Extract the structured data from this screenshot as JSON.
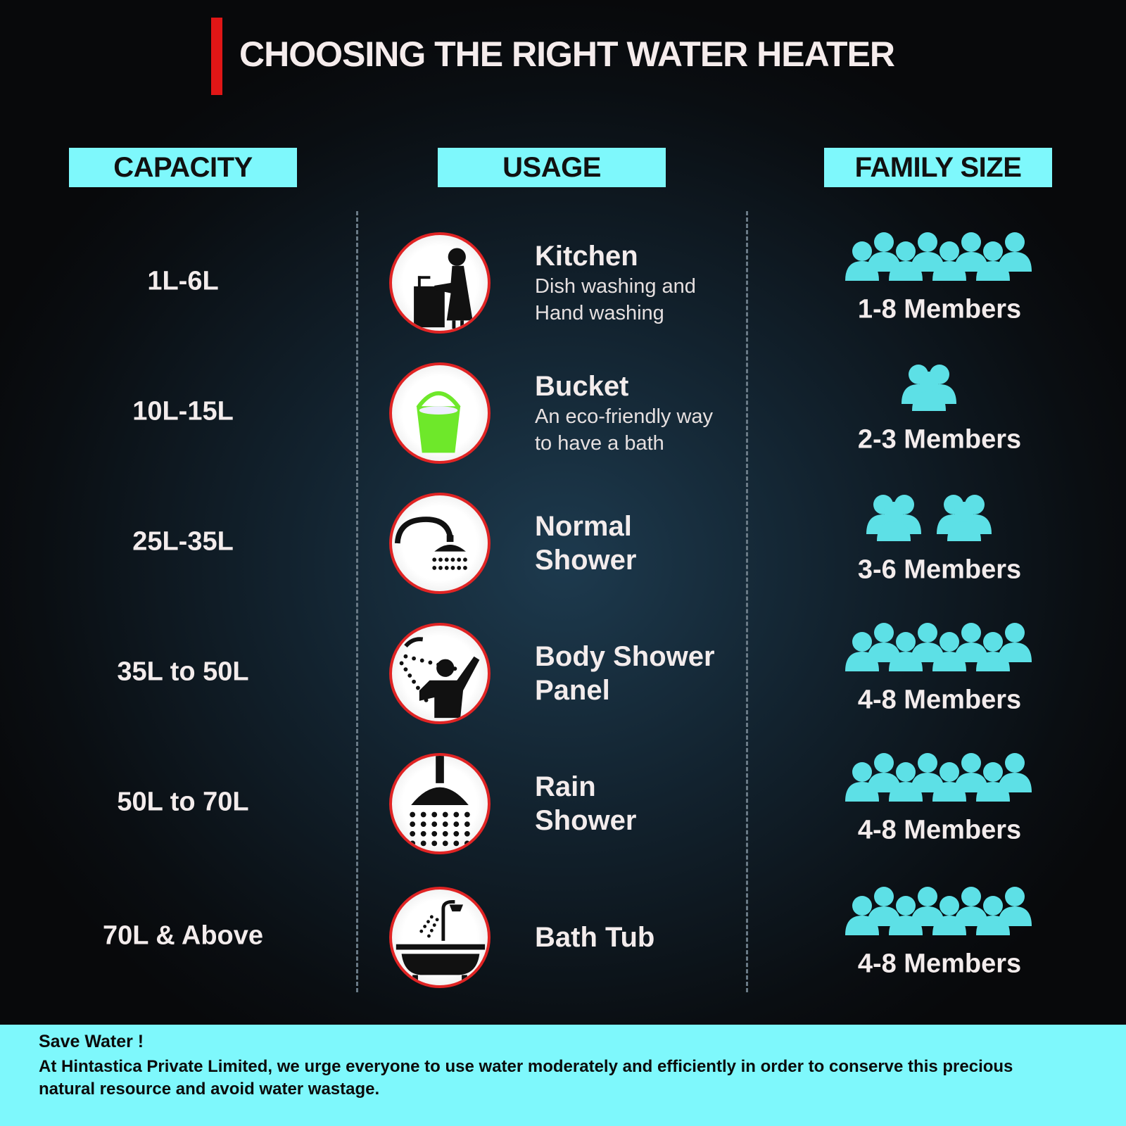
{
  "title": "CHOOSING THE RIGHT WATER HEATER",
  "colors": {
    "accent_red": "#e01616",
    "cyan": "#7ef8fc",
    "bucket_green": "#6ee82a"
  },
  "headers": {
    "capacity": "CAPACITY",
    "usage": "USAGE",
    "family": "FAMILY SIZE"
  },
  "rows": [
    {
      "capacity": "1L-6L",
      "icon": "kitchen-sink-icon",
      "title": "Kitchen",
      "desc1": "Dish washing and",
      "desc2": "Hand washing",
      "people_count": 8,
      "members": "1-8 Members"
    },
    {
      "capacity": "10L-15L",
      "icon": "bucket-icon",
      "title": "Bucket",
      "desc1": "An eco-friendly way",
      "desc2": "to have a bath",
      "people_count": 3,
      "members": "2-3 Members"
    },
    {
      "capacity": "25L-35L",
      "icon": "shower-icon",
      "title": "Normal",
      "title2": "Shower",
      "people_count": 6,
      "members": "3-6 Members"
    },
    {
      "capacity": "35L to 50L",
      "icon": "body-shower-icon",
      "title": "Body Shower",
      "title2": "Panel",
      "people_count": 8,
      "members": "4-8 Members"
    },
    {
      "capacity": "50L to 70L",
      "icon": "rain-shower-icon",
      "title": "Rain",
      "title2": "Shower",
      "people_count": 8,
      "members": "4-8 Members"
    },
    {
      "capacity": "70L & Above",
      "icon": "bath-tub-icon",
      "title": "Bath Tub",
      "people_count": 8,
      "members": "4-8 Members"
    }
  ],
  "footer": {
    "heading": "Save Water !",
    "message": "At Hintastica Private Limited, we urge everyone to use water moderately and efficiently in order to conserve this precious natural resource and avoid water wastage."
  }
}
